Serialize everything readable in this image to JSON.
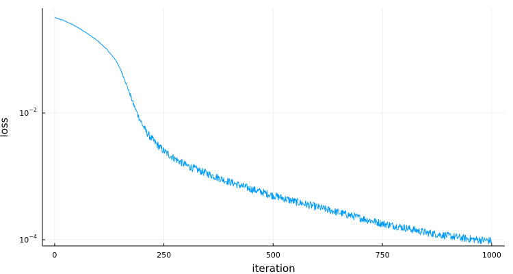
{
  "chart_data": {
    "type": "line",
    "title": "",
    "xlabel": "iteration",
    "ylabel": "loss",
    "xlim": [
      -28,
      1030
    ],
    "ylim": [
      8e-05,
      0.45
    ],
    "yscale": "log",
    "grid": true,
    "legend": "none",
    "x_ticks": [
      {
        "value": 0,
        "label": "0"
      },
      {
        "value": 250,
        "label": "250"
      },
      {
        "value": 500,
        "label": "500"
      },
      {
        "value": 750,
        "label": "750"
      },
      {
        "value": 1000,
        "label": "1000"
      }
    ],
    "y_ticks": [
      {
        "value": 0.01,
        "base": "10",
        "exp": "−2"
      },
      {
        "value": 0.0001,
        "base": "10",
        "exp": "−4"
      }
    ],
    "series": [
      {
        "color": "#009af9",
        "noise_fraction": 0.06,
        "x": [
          0,
          20,
          40,
          60,
          80,
          100,
          120,
          140,
          150,
          160,
          170,
          180,
          190,
          200,
          210,
          220,
          230,
          250,
          275,
          300,
          350,
          400,
          450,
          500,
          550,
          600,
          650,
          700,
          750,
          800,
          850,
          900,
          950,
          1000
        ],
        "y": [
          0.32,
          0.29,
          0.25,
          0.21,
          0.17,
          0.135,
          0.1,
          0.068,
          0.05,
          0.034,
          0.022,
          0.014,
          0.0095,
          0.0067,
          0.005,
          0.0041,
          0.0034,
          0.0025,
          0.0019,
          0.0015,
          0.0011,
          0.00082,
          0.00063,
          0.0005,
          0.0004,
          0.00033,
          0.00027,
          0.00022,
          0.00018,
          0.000155,
          0.00013,
          0.000115,
          0.000103,
          9.6e-05
        ]
      }
    ]
  }
}
